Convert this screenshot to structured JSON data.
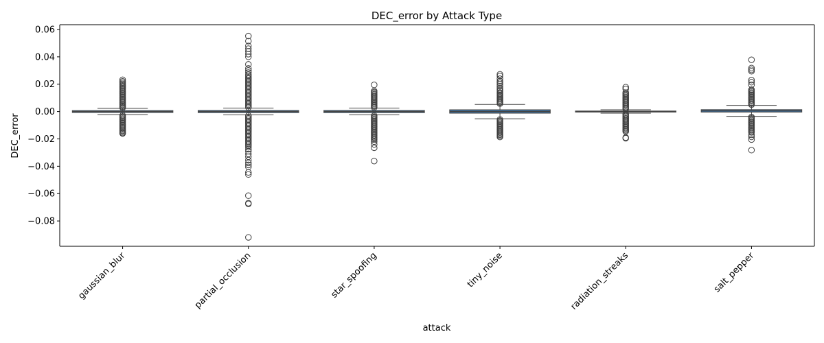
{
  "chart_data": {
    "type": "box",
    "title": "DEC_error by Attack Type",
    "xlabel": "attack",
    "ylabel": "DEC_error",
    "ylim": [
      -0.0985,
      0.0635
    ],
    "yticks": [
      0.06,
      0.04,
      0.02,
      0.0,
      -0.02,
      -0.04,
      -0.06,
      -0.08
    ],
    "ytick_labels": [
      "0.06",
      "0.04",
      "0.02",
      "0.00",
      "−0.02",
      "−0.04",
      "−0.06",
      "−0.08"
    ],
    "categories": [
      "gaussian_blur",
      "partial_occlusion",
      "star_spoofing",
      "tiny_noise",
      "radiation_streaks",
      "salt_pepper"
    ],
    "grid": false,
    "box_color": "#3e6c96",
    "edge_color": "#444444",
    "series": [
      {
        "category": "gaussian_blur",
        "q1": -0.0007,
        "median": 0.0,
        "q3": 0.0007,
        "whisker_low": -0.0022,
        "whisker_high": 0.0023,
        "outlier_high": [
          0.0028,
          0.0035,
          0.0042,
          0.005,
          0.0058,
          0.0066,
          0.0074,
          0.0082,
          0.009,
          0.0098,
          0.0106,
          0.0114,
          0.0122,
          0.013,
          0.0138,
          0.0146,
          0.0154,
          0.0162,
          0.017,
          0.0178,
          0.0186,
          0.0194,
          0.0202,
          0.021,
          0.022,
          0.0232
        ],
        "outlier_low": [
          -0.0028,
          -0.0036,
          -0.0044,
          -0.0052,
          -0.006,
          -0.0068,
          -0.0076,
          -0.0084,
          -0.0092,
          -0.01,
          -0.0108,
          -0.0116,
          -0.0124,
          -0.0132,
          -0.014,
          -0.0148,
          -0.0156,
          -0.016
        ]
      },
      {
        "category": "partial_occlusion",
        "q1": -0.0008,
        "median": 0.0,
        "q3": 0.0008,
        "whisker_low": -0.0024,
        "whisker_high": 0.0025,
        "outlier_high": [
          0.003,
          0.004,
          0.005,
          0.006,
          0.007,
          0.008,
          0.009,
          0.01,
          0.011,
          0.012,
          0.013,
          0.014,
          0.015,
          0.016,
          0.017,
          0.018,
          0.019,
          0.02,
          0.021,
          0.022,
          0.023,
          0.024,
          0.025,
          0.026,
          0.027,
          0.0285,
          0.03,
          0.0315,
          0.0345,
          0.04,
          0.042,
          0.044,
          0.046,
          0.048,
          0.0515,
          0.0552
        ],
        "outlier_low": [
          -0.003,
          -0.004,
          -0.005,
          -0.006,
          -0.007,
          -0.008,
          -0.009,
          -0.01,
          -0.011,
          -0.012,
          -0.013,
          -0.014,
          -0.015,
          -0.016,
          -0.017,
          -0.018,
          -0.019,
          -0.02,
          -0.021,
          -0.022,
          -0.023,
          -0.024,
          -0.025,
          -0.026,
          -0.0275,
          -0.029,
          -0.031,
          -0.033,
          -0.0355,
          -0.0375,
          -0.039,
          -0.0405,
          -0.0445,
          -0.046,
          -0.0615,
          -0.067,
          -0.0675,
          -0.092
        ]
      },
      {
        "category": "star_spoofing",
        "q1": -0.0008,
        "median": 0.0,
        "q3": 0.0008,
        "whisker_low": -0.0023,
        "whisker_high": 0.0025,
        "outlier_high": [
          0.003,
          0.0038,
          0.0046,
          0.0054,
          0.0062,
          0.007,
          0.0078,
          0.0086,
          0.0094,
          0.0102,
          0.011,
          0.0118,
          0.0126,
          0.0134,
          0.0142,
          0.015,
          0.0195
        ],
        "outlier_low": [
          -0.003,
          -0.0038,
          -0.0046,
          -0.0054,
          -0.0062,
          -0.007,
          -0.0078,
          -0.0086,
          -0.0094,
          -0.0102,
          -0.011,
          -0.0118,
          -0.0126,
          -0.0134,
          -0.0142,
          -0.015,
          -0.0158,
          -0.0166,
          -0.0174,
          -0.0182,
          -0.019,
          -0.0198,
          -0.0206,
          -0.022,
          -0.024,
          -0.0265,
          -0.0362
        ]
      },
      {
        "category": "tiny_noise",
        "q1": -0.0012,
        "median": 0.0,
        "q3": 0.0013,
        "whisker_low": -0.0053,
        "whisker_high": 0.0052,
        "outlier_high": [
          0.0058,
          0.0066,
          0.0074,
          0.0082,
          0.009,
          0.0098,
          0.0106,
          0.0114,
          0.0122,
          0.013,
          0.0138,
          0.015,
          0.016,
          0.0172,
          0.0185,
          0.0198,
          0.021,
          0.0222,
          0.024,
          0.026,
          0.0272
        ],
        "outlier_low": [
          -0.0058,
          -0.0066,
          -0.0074,
          -0.0082,
          -0.009,
          -0.0098,
          -0.0106,
          -0.0114,
          -0.0122,
          -0.013,
          -0.0138,
          -0.0146,
          -0.0154,
          -0.0162,
          -0.017,
          -0.0178,
          -0.0186
        ]
      },
      {
        "category": "radiation_streaks",
        "q1": -0.0004,
        "median": 0.0,
        "q3": 0.0004,
        "whisker_low": -0.0012,
        "whisker_high": 0.0013,
        "outlier_high": [
          0.0018,
          0.0026,
          0.0034,
          0.0042,
          0.005,
          0.0058,
          0.0066,
          0.0074,
          0.0082,
          0.009,
          0.0098,
          0.0106,
          0.0114,
          0.0122,
          0.013,
          0.0138,
          0.0165,
          0.0178
        ],
        "outlier_low": [
          -0.0018,
          -0.0026,
          -0.0034,
          -0.0042,
          -0.005,
          -0.0058,
          -0.0066,
          -0.0074,
          -0.0082,
          -0.009,
          -0.0098,
          -0.0106,
          -0.0114,
          -0.0122,
          -0.013,
          -0.0138,
          -0.0146,
          -0.019,
          -0.0195
        ]
      },
      {
        "category": "salt_pepper",
        "q1": -0.0004,
        "median": 0.0005,
        "q3": 0.0014,
        "whisker_low": -0.0035,
        "whisker_high": 0.0045,
        "outlier_high": [
          0.005,
          0.0058,
          0.0066,
          0.0074,
          0.0082,
          0.009,
          0.0098,
          0.0106,
          0.0114,
          0.0122,
          0.013,
          0.0138,
          0.0146,
          0.0154,
          0.016,
          0.0195,
          0.0215,
          0.023,
          0.0295,
          0.0305,
          0.0318,
          0.0378
        ],
        "outlier_low": [
          -0.004,
          -0.0048,
          -0.0056,
          -0.0064,
          -0.0072,
          -0.008,
          -0.0088,
          -0.0096,
          -0.0104,
          -0.0112,
          -0.012,
          -0.0128,
          -0.0136,
          -0.0144,
          -0.0152,
          -0.017,
          -0.0185,
          -0.0205,
          -0.0282
        ]
      }
    ]
  }
}
